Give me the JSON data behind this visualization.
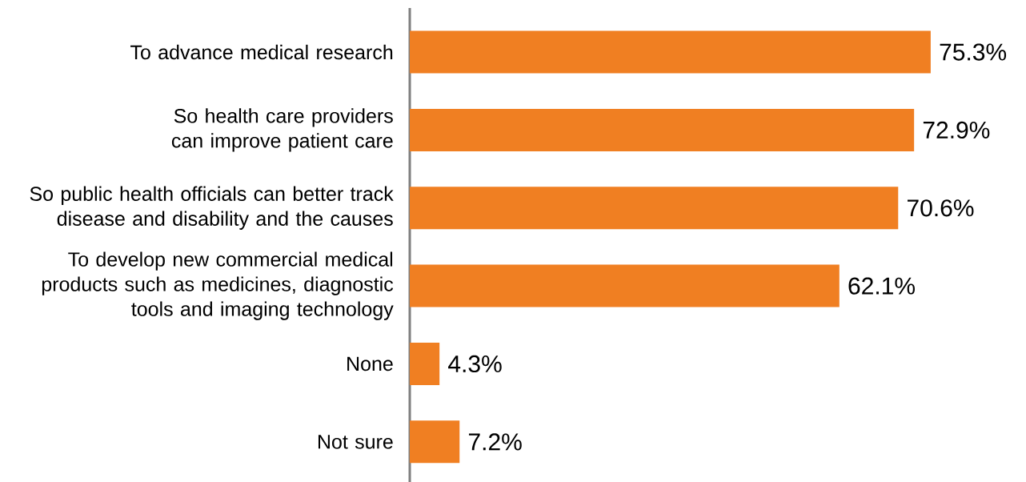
{
  "chart_data": {
    "type": "bar",
    "orientation": "horizontal",
    "categories": [
      "To advance medical research",
      "So health care providers can improve patient care",
      "So public health officials can better track disease and disability and the causes",
      "To develop new commercial medical products such as medicines, diagnostic tools and imaging technology",
      "None",
      "Not sure"
    ],
    "values": [
      75.3,
      72.9,
      70.6,
      62.1,
      4.3,
      7.2
    ],
    "value_labels": [
      "75.3%",
      "72.9%",
      "70.6%",
      "62.1%",
      "4.3%",
      "7.2%"
    ],
    "color": "#f07f22"
  }
}
